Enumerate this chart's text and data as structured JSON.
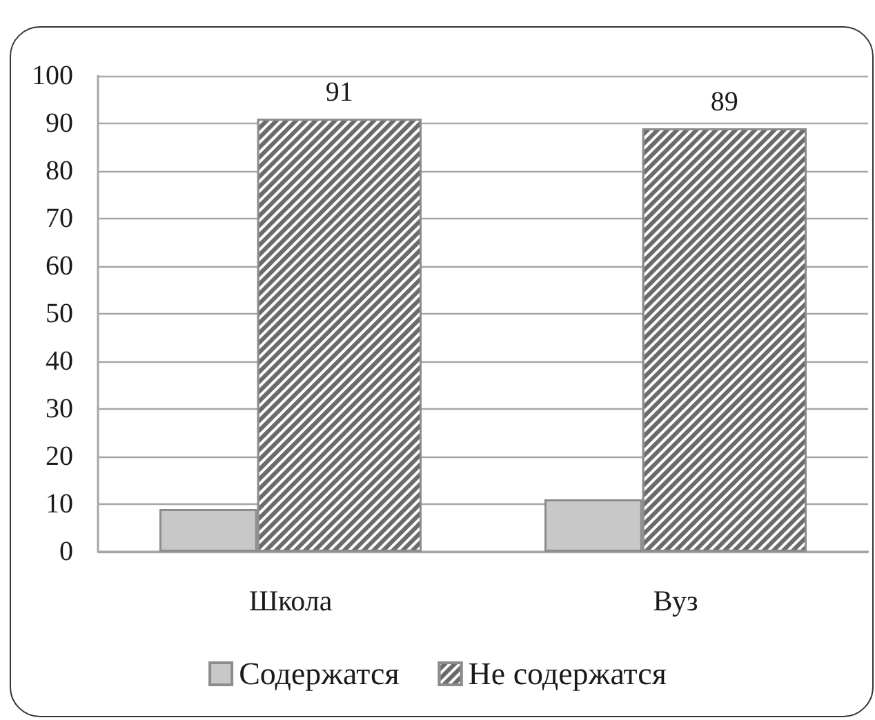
{
  "chart_data": {
    "type": "bar",
    "categories": [
      "Школа",
      "Вуз"
    ],
    "series": [
      {
        "name": "Содержатся",
        "color": "#c8c8c8",
        "values": [
          9,
          11
        ]
      },
      {
        "name": "Не содержатся",
        "color": "#6b6b6b",
        "values": [
          91,
          89
        ],
        "value_labels": [
          "91",
          "89"
        ]
      }
    ],
    "ylim": [
      0,
      100
    ],
    "yticks": [
      0,
      10,
      20,
      30,
      40,
      50,
      60,
      70,
      80,
      90,
      100
    ],
    "grid": "y",
    "legend": "bottom"
  }
}
